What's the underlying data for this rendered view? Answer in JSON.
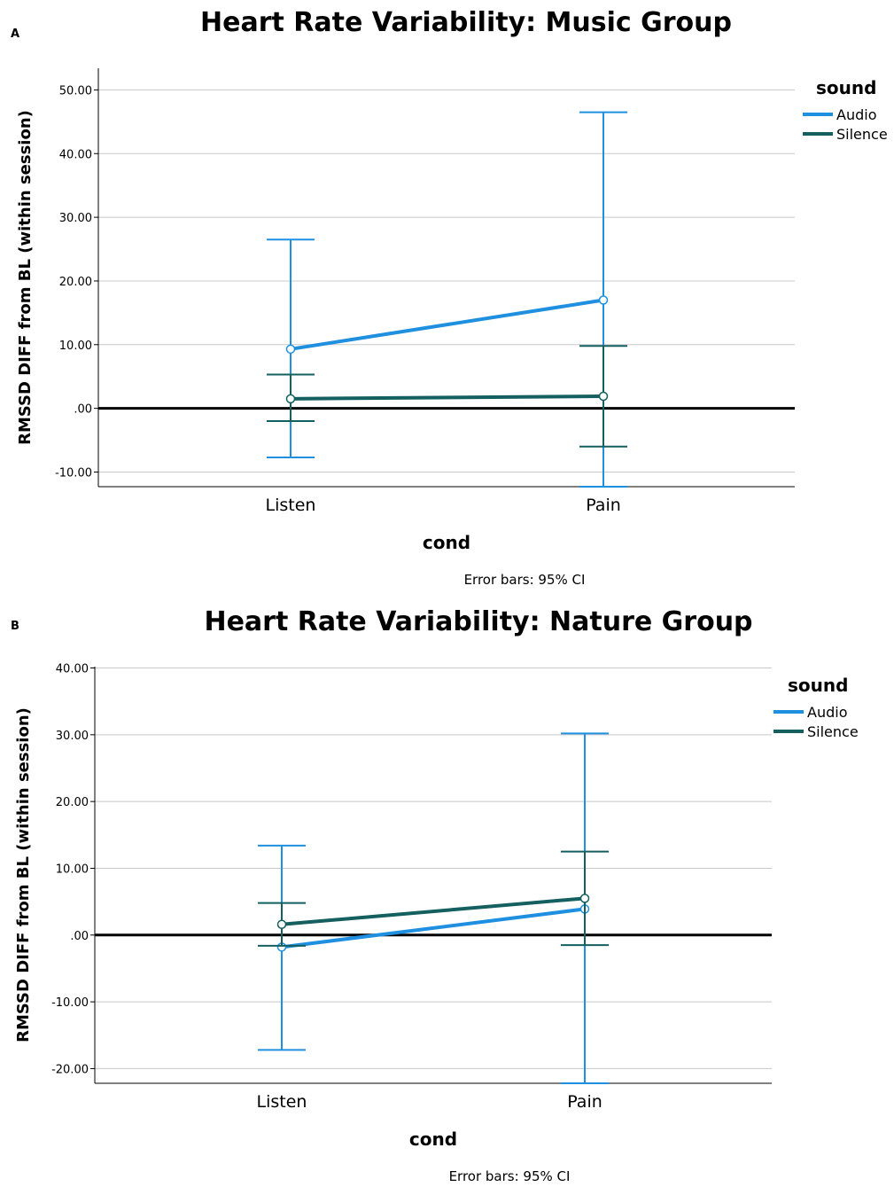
{
  "chart_data": [
    {
      "type": "line",
      "panel": "A",
      "title": "Heart Rate Variability: Music Group",
      "xlabel": "cond",
      "ylabel": "RMSSD DIFF from BL (within session)",
      "categories": [
        "Listen",
        "Pain"
      ],
      "ylim": [
        -12.3,
        53.4
      ],
      "yticks": [
        -10,
        0,
        10,
        20,
        30,
        40,
        50
      ],
      "ytick_labels": [
        "-10.00",
        ".00",
        "10.00",
        "20.00",
        "30.00",
        "40.00",
        "50.00"
      ],
      "reference_line": 0,
      "legend_title": "sound",
      "legend_position": "top-right",
      "note": "Error bars: 95% CI",
      "series": [
        {
          "name": "Audio",
          "color": "#1f8fe0",
          "values": [
            9.3,
            17.0
          ],
          "ci_low": [
            -7.7,
            -12.3
          ],
          "ci_high": [
            26.5,
            46.5
          ]
        },
        {
          "name": "Silence",
          "color": "#145f5f",
          "values": [
            1.5,
            1.9
          ],
          "ci_low": [
            -2.0,
            -6.0
          ],
          "ci_high": [
            5.3,
            9.8
          ]
        }
      ]
    },
    {
      "type": "line",
      "panel": "B",
      "title": "Heart Rate Variability: Nature Group",
      "xlabel": "cond",
      "ylabel": "RMSSD DIFF from BL (within session)",
      "categories": [
        "Listen",
        "Pain"
      ],
      "ylim": [
        -22.2,
        40.2
      ],
      "yticks": [
        -20,
        -10,
        0,
        10,
        20,
        30,
        40
      ],
      "ytick_labels": [
        "-20.00",
        "-10.00",
        ".00",
        "10.00",
        "20.00",
        "30.00",
        "40.00"
      ],
      "reference_line": 0,
      "legend_title": "sound",
      "legend_position": "top-right",
      "note": "Error bars: 95% CI",
      "series": [
        {
          "name": "Audio",
          "color": "#1f8fe0",
          "values": [
            -1.8,
            3.9
          ],
          "ci_low": [
            -17.2,
            -22.2
          ],
          "ci_high": [
            13.4,
            30.2
          ]
        },
        {
          "name": "Silence",
          "color": "#145f5f",
          "values": [
            1.6,
            5.5
          ],
          "ci_low": [
            -1.6,
            -1.5
          ],
          "ci_high": [
            4.8,
            12.5
          ]
        }
      ]
    }
  ]
}
